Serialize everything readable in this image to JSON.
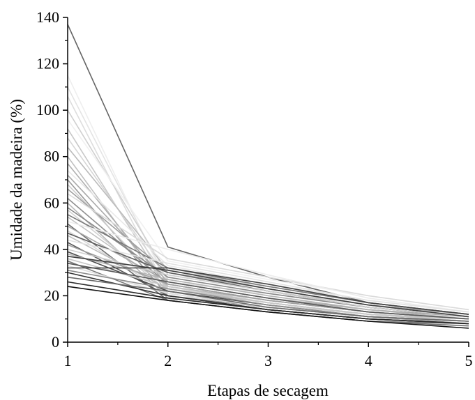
{
  "chart_data": {
    "type": "line",
    "xlabel": "Etapas de secagem",
    "ylabel": "Umidade da madeira (%)",
    "x": [
      1,
      2,
      3,
      4,
      5
    ],
    "xlim": [
      1,
      5
    ],
    "ylim": [
      0,
      140
    ],
    "xticks": [
      "1",
      "2",
      "3",
      "4",
      "5"
    ],
    "yticks": [
      "0",
      "20",
      "40",
      "60",
      "80",
      "100",
      "120",
      "140"
    ],
    "grid": false,
    "legend": "none",
    "series": [
      {
        "values": [
          137,
          41,
          28,
          17,
          12
        ],
        "color": "#666666"
      },
      {
        "values": [
          115,
          24,
          16,
          12,
          10
        ],
        "color": "#eeeeee"
      },
      {
        "values": [
          110,
          26,
          21,
          15,
          11
        ],
        "color": "#e4e4e4"
      },
      {
        "values": [
          106,
          22,
          15,
          11,
          9
        ],
        "color": "#dddddd"
      },
      {
        "values": [
          100,
          29,
          22,
          16,
          12
        ],
        "color": "#d0d0d0"
      },
      {
        "values": [
          96,
          35,
          27,
          20,
          14
        ],
        "color": "#f0f0f0"
      },
      {
        "values": [
          92,
          23,
          17,
          12,
          10
        ],
        "color": "#c8c8c8"
      },
      {
        "values": [
          88,
          27,
          20,
          14,
          11
        ],
        "color": "#d6d6d6"
      },
      {
        "values": [
          84,
          31,
          24,
          17,
          12
        ],
        "color": "#bbbbbb"
      },
      {
        "values": [
          80,
          21,
          15,
          11,
          9
        ],
        "color": "#c0c0c0"
      },
      {
        "values": [
          77,
          24,
          18,
          13,
          10
        ],
        "color": "#b0b0b0"
      },
      {
        "values": [
          74,
          33,
          25,
          18,
          13
        ],
        "color": "#e8e8e8"
      },
      {
        "values": [
          72,
          26,
          19,
          14,
          11
        ],
        "color": "#a8a8a8"
      },
      {
        "values": [
          70,
          20,
          15,
          11,
          8
        ],
        "color": "#9a9a9a"
      },
      {
        "values": [
          68,
          23,
          17,
          12,
          10
        ],
        "color": "#cccccc"
      },
      {
        "values": [
          66,
          30,
          23,
          16,
          12
        ],
        "color": "#a0a0a0"
      },
      {
        "values": [
          64,
          36,
          28,
          20,
          14
        ],
        "color": "#dadada"
      },
      {
        "values": [
          62,
          25,
          18,
          13,
          10
        ],
        "color": "#909090"
      },
      {
        "values": [
          60,
          19,
          14,
          10,
          8
        ],
        "color": "#b8b8b8"
      },
      {
        "values": [
          58,
          28,
          21,
          15,
          11
        ],
        "color": "#888888"
      },
      {
        "values": [
          57,
          22,
          16,
          12,
          9
        ],
        "color": "#d2d2d2"
      },
      {
        "values": [
          55,
          32,
          24,
          17,
          12
        ],
        "color": "#7a7a7a"
      },
      {
        "values": [
          54,
          24,
          17,
          12,
          10
        ],
        "color": "#c4c4c4"
      },
      {
        "values": [
          52,
          40,
          29,
          19,
          13
        ],
        "color": "#ececec"
      },
      {
        "values": [
          51,
          18,
          13,
          9,
          7
        ],
        "color": "#6e6e6e"
      },
      {
        "values": [
          50,
          26,
          19,
          13,
          10
        ],
        "color": "#aaaaaa"
      },
      {
        "values": [
          48,
          21,
          15,
          11,
          9
        ],
        "color": "#d8d8d8"
      },
      {
        "values": [
          47,
          30,
          22,
          15,
          11
        ],
        "color": "#5f5f5f"
      },
      {
        "values": [
          46,
          23,
          17,
          12,
          9
        ],
        "color": "#bdbdbd"
      },
      {
        "values": [
          44,
          34,
          26,
          18,
          13
        ],
        "color": "#e2e2e2"
      },
      {
        "values": [
          43,
          20,
          14,
          10,
          8
        ],
        "color": "#555555"
      },
      {
        "values": [
          42,
          25,
          18,
          13,
          10
        ],
        "color": "#9e9e9e"
      },
      {
        "values": [
          40,
          29,
          22,
          15,
          11
        ],
        "color": "#cecece"
      },
      {
        "values": [
          39,
          22,
          16,
          11,
          9
        ],
        "color": "#4a4a4a"
      },
      {
        "values": [
          38,
          27,
          20,
          14,
          10
        ],
        "color": "#b4b4b4"
      },
      {
        "values": [
          37,
          31,
          23,
          16,
          11
        ],
        "color": "#3f3f3f"
      },
      {
        "values": [
          36,
          24,
          17,
          12,
          9
        ],
        "color": "#c6c6c6"
      },
      {
        "values": [
          35,
          18,
          13,
          9,
          8
        ],
        "color": "#777777"
      },
      {
        "values": [
          34,
          26,
          19,
          13,
          10
        ],
        "color": "#5a5a5a"
      },
      {
        "values": [
          33,
          21,
          15,
          11,
          9
        ],
        "color": "#dedede"
      },
      {
        "values": [
          32,
          32,
          25,
          17,
          12
        ],
        "color": "#444444"
      },
      {
        "values": [
          31,
          23,
          16,
          11,
          9
        ],
        "color": "#8c8c8c"
      },
      {
        "values": [
          30,
          20,
          14,
          10,
          8
        ],
        "color": "#333333"
      },
      {
        "values": [
          28,
          22,
          15,
          11,
          9
        ],
        "color": "#6a6a6a"
      },
      {
        "values": [
          26,
          19,
          14,
          10,
          8
        ],
        "color": "#2a2a2a"
      },
      {
        "values": [
          24,
          18,
          13,
          9,
          6
        ],
        "color": "#111111"
      }
    ]
  }
}
